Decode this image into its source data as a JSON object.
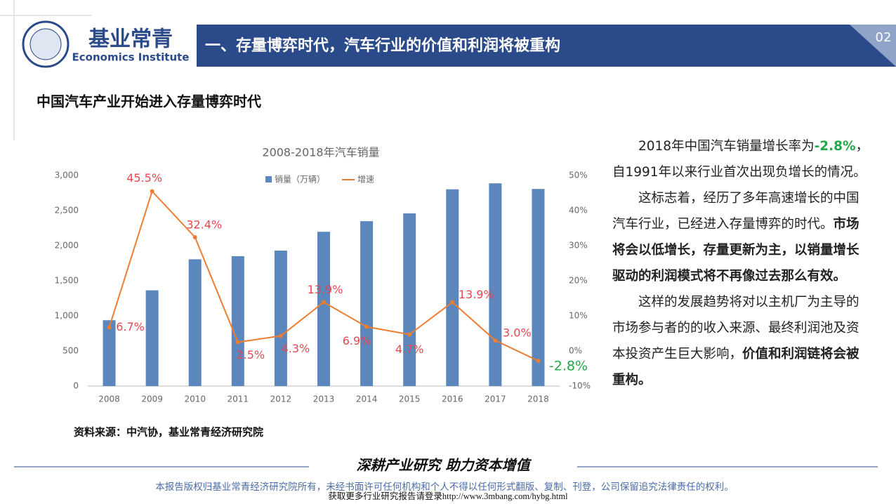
{
  "header": {
    "logo_cn": "基业常青",
    "logo_en": "Economics Institute",
    "banner": "一、存量博弈时代，汽车行业的价值和利润将被重构",
    "page": "02"
  },
  "subtitle": "中国汽车产业开始进入存量博弈时代",
  "chart_data": {
    "type": "bar-line",
    "title": "2008-2018年汽车销量",
    "categories": [
      "2008",
      "2009",
      "2010",
      "2011",
      "2012",
      "2013",
      "2014",
      "2015",
      "2016",
      "2017",
      "2018"
    ],
    "series": [
      {
        "name": "销量（万辆）",
        "type": "bar",
        "color": "#5b87bd",
        "axis": "y",
        "values": [
          938,
          1364,
          1806,
          1850,
          1930,
          2198,
          2349,
          2460,
          2803,
          2888,
          2808
        ]
      },
      {
        "name": "增速",
        "type": "line",
        "color": "#ed7d31",
        "axis": "y2",
        "values": [
          6.7,
          45.5,
          32.4,
          2.5,
          4.3,
          13.9,
          6.9,
          4.7,
          13.9,
          3.0,
          -2.8
        ],
        "value_labels": [
          "6.7%",
          "45.5%",
          "32.4%",
          "2.5%",
          "4.3%",
          "13.9%",
          "6.9%",
          "4.7%",
          "13.9%",
          "3.0%",
          "-2.8%"
        ]
      }
    ],
    "ylim": [
      0,
      3000
    ],
    "yticks": [
      0,
      500,
      {
        "value": 1000,
        "label": "1,000"
      },
      {
        "value": 1500,
        "label": "1,500"
      },
      {
        "value": 2000,
        "label": "2,000"
      },
      {
        "value": 2500,
        "label": "2,500"
      },
      {
        "value": 3000,
        "label": "3,000"
      }
    ],
    "y2lim": [
      -10,
      50
    ],
    "y2ticks": [
      {
        "value": -10,
        "label": "-10%"
      },
      {
        "value": 0,
        "label": "0%"
      },
      {
        "value": 10,
        "label": "10%"
      },
      {
        "value": 20,
        "label": "20%"
      },
      {
        "value": 30,
        "label": "30%"
      },
      {
        "value": 40,
        "label": "40%"
      },
      {
        "value": 50,
        "label": "50%"
      }
    ],
    "grid": false
  },
  "source": "资料来源：中汽协，基业常青经济研究院",
  "text": {
    "paragraphs": [
      [
        "2018年中国汽车销量增长率为",
        "-2.8%",
        "，自1991年以来行业首次出现负增长的情况。"
      ],
      [
        "这标志着，经历了多年高速增长的中国汽车行业，已经进入存量博弈的时代。",
        "市场将会以低增长，存量更新为主，以销量增长驱动的利润模式将不再像过去那么有效。"
      ],
      [
        "这样的发展趋势将对以主机厂为主导的市场参与者的的收入来源、最终利润池及资本投资产生巨大影响，",
        "价值和利润链将会被重构。"
      ]
    ]
  },
  "footer": {
    "slogan": "深耕产业研究 助力资本增值",
    "copyright": "本报告版权归基业常青经济研究院所有，未经书面许可任何机构和个人不得以任何形式翻版、复制、刊登，公司保留追究法律责任的权利。",
    "link": "获取更多行业研究报告请登录http://www.3mbang.com/hybg.html"
  }
}
